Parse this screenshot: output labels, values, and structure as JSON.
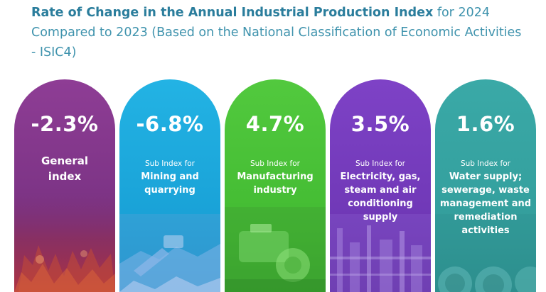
{
  "title_bold": "Rate of Change in the Annual Industrial Production Index",
  "title_rest": " for 2024 Compared to 2023 (Based on the National Classification of Economic Activities - ISIC4)",
  "chart_data": {
    "type": "table",
    "title": "Rate of Change in the Annual Industrial Production Index for 2024 Compared to 2023 (Based on the National Classification of Economic Activities - ISIC4)",
    "unit": "%",
    "categories": [
      "General index",
      "Mining and quarrying",
      "Manufacturing industry",
      "Electricity, gas, steam and air conditioning supply",
      "Water supply; sewerage, waste management and remediation activities"
    ],
    "values": [
      -2.3,
      -6.8,
      4.7,
      3.5,
      1.6
    ],
    "cards": [
      {
        "value_label": "-2.3%",
        "sub_label": "",
        "name": "General index",
        "color": "#8a3d92"
      },
      {
        "value_label": "-6.8%",
        "sub_label": "Sub Index for",
        "name": "Mining and quarrying",
        "color": "#1fa8dc"
      },
      {
        "value_label": "4.7%",
        "sub_label": "Sub Index for",
        "name": "Manufacturing industry",
        "color": "#4cc23c"
      },
      {
        "value_label": "3.5%",
        "sub_label": "Sub Index for",
        "name": "Electricity, gas, steam and air conditioning supply",
        "color": "#7a3fc0"
      },
      {
        "value_label": "1.6%",
        "sub_label": "Sub Index for",
        "name": "Water supply; sewerage, waste management and remediation activities",
        "color": "#38a6a4"
      }
    ]
  }
}
